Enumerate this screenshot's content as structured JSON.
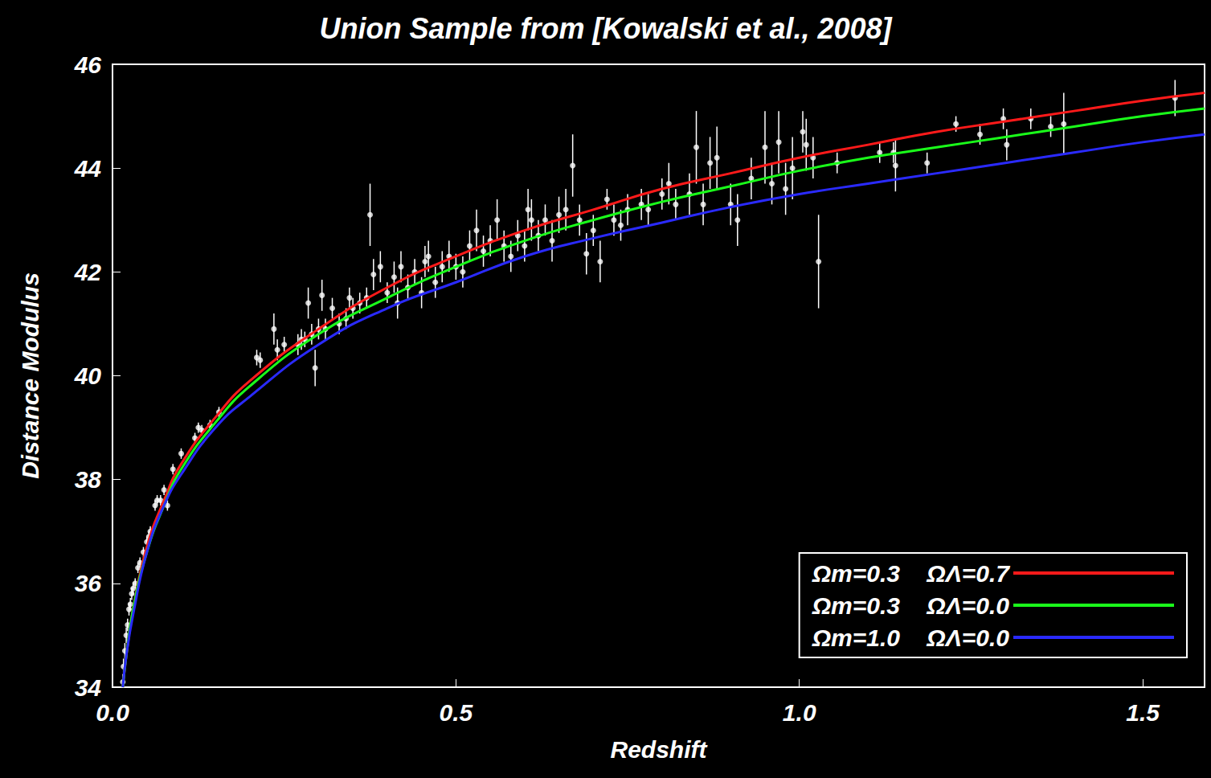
{
  "chart_data": {
    "type": "scatter",
    "title": "Union Sample from [Kowalski et al., 2008]",
    "x_label": "Redshift",
    "y_label": "Distance Modulus",
    "xlim": [
      0,
      1.59
    ],
    "ylim": [
      34,
      46
    ],
    "xticks": [
      {
        "value": 0,
        "label": "0.0"
      },
      0.5,
      {
        "value": 1,
        "label": "1.0"
      },
      1.5
    ],
    "yticks": [
      34,
      36,
      38,
      40,
      42,
      44,
      46
    ],
    "grid": false,
    "legend": "lower right",
    "series": [
      {
        "type": "scatter",
        "color": "#ffffff",
        "marker": "circle",
        "x": [
          0.015,
          0.016,
          0.018,
          0.02,
          0.022,
          0.024,
          0.026,
          0.028,
          0.03,
          0.033,
          0.037,
          0.04,
          0.045,
          0.05,
          0.053,
          0.055,
          0.062,
          0.065,
          0.07,
          0.075,
          0.08,
          0.088,
          0.1,
          0.12,
          0.125,
          0.13,
          0.142,
          0.155,
          0.21,
          0.215,
          0.235,
          0.24,
          0.25,
          0.27,
          0.275,
          0.28,
          0.285,
          0.29,
          0.295,
          0.3,
          0.305,
          0.31,
          0.32,
          0.33,
          0.34,
          0.345,
          0.35,
          0.36,
          0.37,
          0.375,
          0.38,
          0.39,
          0.4,
          0.41,
          0.415,
          0.42,
          0.43,
          0.44,
          0.45,
          0.455,
          0.46,
          0.47,
          0.48,
          0.49,
          0.5,
          0.51,
          0.52,
          0.53,
          0.54,
          0.55,
          0.56,
          0.57,
          0.58,
          0.59,
          0.6,
          0.605,
          0.61,
          0.62,
          0.63,
          0.64,
          0.65,
          0.66,
          0.67,
          0.68,
          0.69,
          0.7,
          0.71,
          0.72,
          0.73,
          0.74,
          0.75,
          0.77,
          0.78,
          0.8,
          0.81,
          0.82,
          0.84,
          0.85,
          0.86,
          0.87,
          0.88,
          0.9,
          0.91,
          0.93,
          0.95,
          0.96,
          0.97,
          0.98,
          0.99,
          1.005,
          1.01,
          1.02,
          1.028,
          1.055,
          1.117,
          1.137,
          1.14,
          1.186,
          1.228,
          1.263,
          1.297,
          1.302,
          1.337,
          1.366,
          1.385,
          1.547
        ],
        "values": [
          34.1,
          34.4,
          34.7,
          35.0,
          35.2,
          35.5,
          35.6,
          35.8,
          35.9,
          36.0,
          36.3,
          36.4,
          36.6,
          36.8,
          36.9,
          37.0,
          37.5,
          37.6,
          37.6,
          37.8,
          37.5,
          38.2,
          38.5,
          38.8,
          39.0,
          38.95,
          39.05,
          39.3,
          40.35,
          40.3,
          40.9,
          40.5,
          40.6,
          40.6,
          40.7,
          40.7,
          41.4,
          40.8,
          40.15,
          40.9,
          41.55,
          40.9,
          41.3,
          41.0,
          41.1,
          41.5,
          41.3,
          41.4,
          41.5,
          43.1,
          41.95,
          42.1,
          41.6,
          41.9,
          41.4,
          42.1,
          41.7,
          42.0,
          41.6,
          42.2,
          42.3,
          41.8,
          42.1,
          42.3,
          42.1,
          42.0,
          42.5,
          42.8,
          42.4,
          42.6,
          43.0,
          42.5,
          42.3,
          42.7,
          42.5,
          43.2,
          43.0,
          42.7,
          43.0,
          42.6,
          43.1,
          43.2,
          44.05,
          43.0,
          42.35,
          42.8,
          42.2,
          43.4,
          43.0,
          42.9,
          43.2,
          43.3,
          43.2,
          43.5,
          43.7,
          43.3,
          43.5,
          44.4,
          43.3,
          44.1,
          44.2,
          43.3,
          43.0,
          43.8,
          44.4,
          43.7,
          44.5,
          43.6,
          44.0,
          44.7,
          44.45,
          44.2,
          42.2,
          44.1,
          44.3,
          44.3,
          44.05,
          44.1,
          44.85,
          44.65,
          44.95,
          44.45,
          44.95,
          44.8,
          44.85,
          45.35
        ],
        "yerr": [
          0.15,
          0.15,
          0.15,
          0.15,
          0.12,
          0.12,
          0.12,
          0.12,
          0.12,
          0.1,
          0.1,
          0.1,
          0.1,
          0.1,
          0.1,
          0.1,
          0.1,
          0.1,
          0.1,
          0.1,
          0.1,
          0.1,
          0.1,
          0.1,
          0.1,
          0.1,
          0.1,
          0.1,
          0.15,
          0.15,
          0.3,
          0.2,
          0.15,
          0.2,
          0.2,
          0.15,
          0.3,
          0.2,
          0.35,
          0.2,
          0.3,
          0.2,
          0.2,
          0.2,
          0.2,
          0.2,
          0.2,
          0.2,
          0.2,
          0.6,
          0.3,
          0.3,
          0.2,
          0.3,
          0.3,
          0.3,
          0.25,
          0.25,
          0.3,
          0.3,
          0.3,
          0.3,
          0.3,
          0.3,
          0.25,
          0.3,
          0.3,
          0.4,
          0.3,
          0.3,
          0.4,
          0.3,
          0.3,
          0.3,
          0.3,
          0.4,
          0.4,
          0.3,
          0.3,
          0.4,
          0.35,
          0.4,
          0.6,
          0.3,
          0.4,
          0.3,
          0.4,
          0.2,
          0.3,
          0.3,
          0.3,
          0.3,
          0.3,
          0.3,
          0.4,
          0.3,
          0.4,
          0.7,
          0.4,
          0.5,
          0.6,
          0.4,
          0.5,
          0.4,
          0.7,
          0.4,
          0.6,
          0.5,
          0.6,
          0.4,
          0.5,
          0.4,
          0.9,
          0.2,
          0.2,
          0.2,
          0.5,
          0.2,
          0.15,
          0.2,
          0.2,
          0.3,
          0.2,
          0.2,
          0.6,
          0.35
        ]
      },
      {
        "type": "line",
        "name": "Ωm=0.3    ΩΛ=0.7",
        "color": "#ff1a1a",
        "x": [
          0.015,
          0.02,
          0.03,
          0.05,
          0.075,
          0.1,
          0.15,
          0.2,
          0.3,
          0.4,
          0.5,
          0.6,
          0.7,
          0.8,
          0.9,
          1.0,
          1.1,
          1.2,
          1.3,
          1.4,
          1.5,
          1.59
        ],
        "values": [
          34.0,
          34.6,
          35.5,
          36.7,
          37.6,
          38.3,
          39.2,
          39.9,
          40.9,
          41.7,
          42.3,
          42.8,
          43.2,
          43.6,
          43.9,
          44.2,
          44.45,
          44.7,
          44.9,
          45.1,
          45.3,
          45.45
        ]
      },
      {
        "type": "line",
        "name": "Ωm=0.3    ΩΛ=0.0",
        "color": "#1aff1a",
        "x": [
          0.015,
          0.02,
          0.03,
          0.05,
          0.075,
          0.1,
          0.15,
          0.2,
          0.3,
          0.4,
          0.5,
          0.6,
          0.7,
          0.8,
          0.9,
          1.0,
          1.1,
          1.2,
          1.3,
          1.4,
          1.5,
          1.59
        ],
        "values": [
          34.0,
          34.6,
          35.5,
          36.6,
          37.5,
          38.2,
          39.1,
          39.8,
          40.8,
          41.5,
          42.1,
          42.6,
          43.0,
          43.35,
          43.65,
          43.95,
          44.2,
          44.4,
          44.6,
          44.8,
          45.0,
          45.15
        ]
      },
      {
        "type": "line",
        "name": "Ωm=1.0    ΩΛ=0.0",
        "color": "#2a2aff",
        "x": [
          0.015,
          0.02,
          0.03,
          0.05,
          0.075,
          0.1,
          0.15,
          0.2,
          0.3,
          0.4,
          0.5,
          0.6,
          0.7,
          0.8,
          0.9,
          1.0,
          1.1,
          1.2,
          1.3,
          1.4,
          1.5,
          1.59
        ],
        "values": [
          34.0,
          34.6,
          35.4,
          36.6,
          37.5,
          38.1,
          39.0,
          39.6,
          40.6,
          41.3,
          41.8,
          42.3,
          42.65,
          42.95,
          43.25,
          43.5,
          43.7,
          43.9,
          44.1,
          44.3,
          44.5,
          44.65
        ]
      }
    ]
  }
}
